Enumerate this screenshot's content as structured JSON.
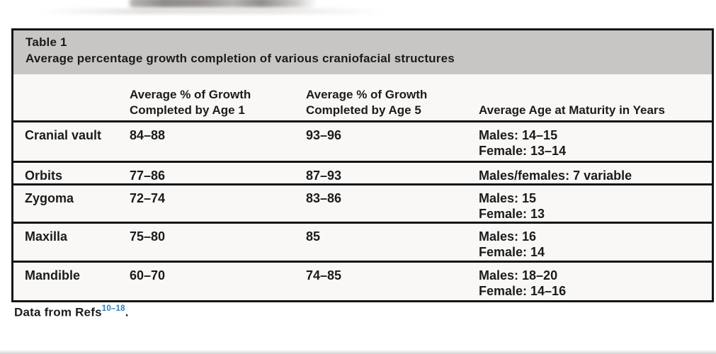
{
  "table": {
    "title": "Table 1",
    "caption": "Average percentage growth completion of various craniofacial structures",
    "headers": {
      "structure": {
        "line1": "",
        "line2": ""
      },
      "age1": {
        "line1": "Average % of Growth",
        "line2": "Completed by Age 1"
      },
      "age5": {
        "line1": "Average % of Growth",
        "line2": "Completed by Age 5"
      },
      "maturity": {
        "line1": "Average Age at Maturity in Years"
      }
    },
    "rows": [
      {
        "structure": "Cranial vault",
        "age1": "84–88",
        "age5": "93–96",
        "maturity": [
          "Males: 14–15",
          "Female: 13–14"
        ]
      },
      {
        "structure": "Orbits",
        "age1": "77–86",
        "age5": "87–93",
        "maturity": [
          "Males/females: 7 variable"
        ]
      },
      {
        "structure": "Zygoma",
        "age1": "72–74",
        "age5": "83–86",
        "maturity": [
          "Males: 15",
          "Female: 13"
        ]
      },
      {
        "structure": "Maxilla",
        "age1": "75–80",
        "age5": "85",
        "maturity": [
          "Males: 16",
          "Female: 14"
        ]
      },
      {
        "structure": "Mandible",
        "age1": "60–70",
        "age5": "74–85",
        "maturity": [
          "Males: 18–20",
          "Female: 14–16"
        ]
      }
    ]
  },
  "footer": {
    "text": "Data from Refs",
    "superscript": "10–18",
    "period": "."
  },
  "colors": {
    "title_band": "#c7c6c4",
    "rule": "#151515",
    "ref_superscript_blue": "#2d7cbf",
    "table_background": "#f9f8f6"
  }
}
